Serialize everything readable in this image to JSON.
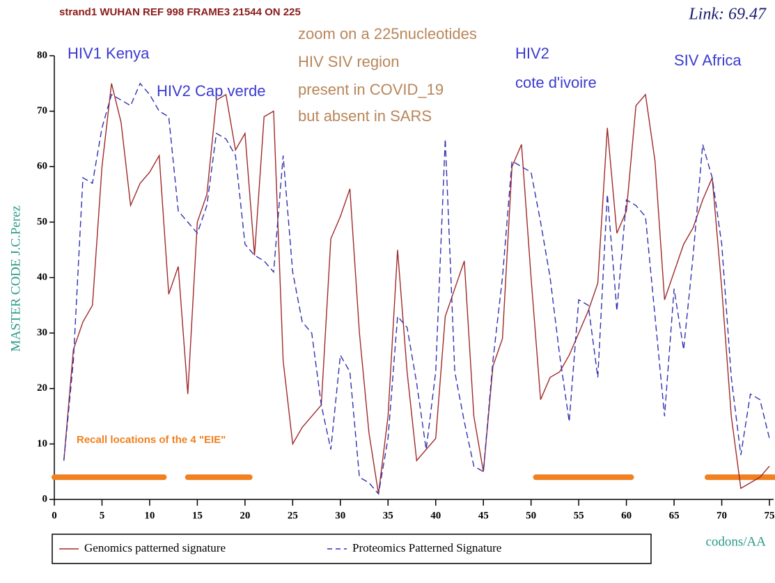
{
  "chart_data": {
    "type": "line",
    "title": "strand1 WUHAN REF 998 FRAME3  21544 ON 225",
    "link_label": "Link: 69.47",
    "ylabel": "MASTER CODE J.C.Perez",
    "xlabel": "codons/AA",
    "x": [
      1,
      2,
      3,
      4,
      5,
      6,
      7,
      8,
      9,
      10,
      11,
      12,
      13,
      14,
      15,
      16,
      17,
      18,
      19,
      20,
      21,
      22,
      23,
      24,
      25,
      26,
      27,
      28,
      29,
      30,
      31,
      32,
      33,
      34,
      35,
      36,
      37,
      38,
      39,
      40,
      41,
      42,
      43,
      44,
      45,
      46,
      47,
      48,
      49,
      50,
      51,
      52,
      53,
      54,
      55,
      56,
      57,
      58,
      59,
      60,
      61,
      62,
      63,
      64,
      65,
      66,
      67,
      68,
      69,
      70,
      71,
      72,
      73,
      74,
      75
    ],
    "series": [
      {
        "name": "Genomics patterned signature",
        "color": "#a0282a",
        "dash": false,
        "values": [
          7,
          27,
          32,
          35,
          60,
          75,
          68,
          53,
          57,
          59,
          62,
          37,
          42,
          19,
          50,
          55,
          72,
          73,
          63,
          66,
          44,
          69,
          70,
          25,
          10,
          13,
          15,
          17,
          47,
          51,
          56,
          30,
          12,
          1,
          15,
          45,
          23,
          7,
          9,
          11,
          33,
          38,
          43,
          15,
          5,
          24,
          29,
          60,
          64,
          40,
          18,
          22,
          23,
          26,
          30,
          34,
          39,
          67,
          48,
          52,
          71,
          73,
          61,
          36,
          41,
          46,
          49,
          54,
          58,
          38,
          15,
          2,
          3,
          4,
          6
        ]
      },
      {
        "name": "Proteomics Patterned Signature",
        "color": "#3030b0",
        "dash": true,
        "values": [
          7,
          25,
          58,
          57,
          67,
          73,
          72,
          71,
          75,
          73,
          70,
          69,
          52,
          50,
          48,
          53,
          66,
          65,
          62,
          46,
          44,
          43,
          41,
          62,
          41,
          32,
          30,
          17,
          9,
          26,
          23,
          4,
          3,
          1,
          11,
          33,
          31,
          21,
          9,
          23,
          65,
          23,
          14,
          6,
          5,
          25,
          40,
          61,
          60,
          59,
          50,
          40,
          26,
          14,
          36,
          35,
          22,
          55,
          34,
          54,
          53,
          51,
          33,
          15,
          38,
          27,
          44,
          64,
          58,
          46,
          22,
          8,
          19,
          18,
          11
        ]
      }
    ],
    "xlim": [
      0,
      75
    ],
    "ylim": [
      0,
      80
    ],
    "xticks": [
      0,
      5,
      10,
      15,
      20,
      25,
      30,
      35,
      40,
      45,
      50,
      55,
      60,
      65,
      70,
      75
    ],
    "yticks": [
      0,
      10,
      20,
      30,
      40,
      50,
      60,
      70,
      80
    ],
    "highlights": {
      "color": "#f08020",
      "label": "Recall locations of the 4 \"EIE\"",
      "y": 4,
      "ranges": [
        [
          0,
          11.5
        ],
        [
          14,
          20.5
        ],
        [
          50.5,
          60.5
        ],
        [
          68.5,
          75.5
        ]
      ]
    },
    "annotations": [
      {
        "text": "zoom on a 225nucleotides",
        "color": "#b8865a"
      },
      {
        "text": "HIV SIV region",
        "color": "#b8865a"
      },
      {
        "text": "present in COVID_19",
        "color": "#b8865a"
      },
      {
        "text": "but absent in SARS",
        "color": "#b8865a"
      },
      {
        "text": "HIV1 Kenya",
        "color": "#3a3ad0"
      },
      {
        "text": "HIV2 Cap verde",
        "color": "#3a3ad0"
      },
      {
        "text": "HIV2",
        "color": "#3a3ad0"
      },
      {
        "text": "cote d'ivoire",
        "color": "#3a3ad0"
      },
      {
        "text": "SIV Africa",
        "color": "#3a3ad0"
      }
    ]
  }
}
